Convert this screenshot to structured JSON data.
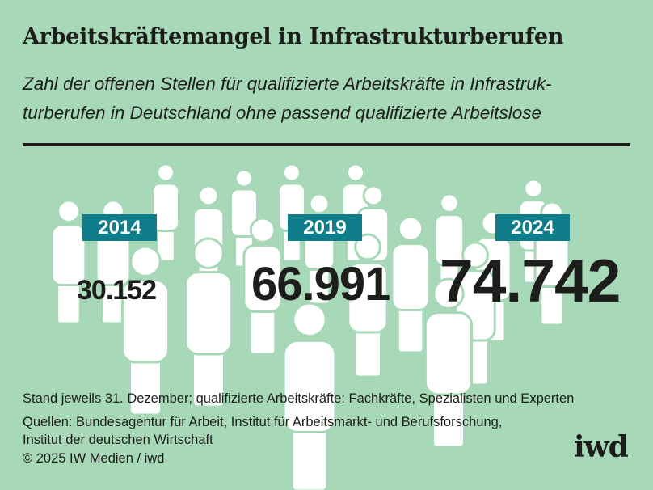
{
  "title": "Arbeitskräftemangel in Infrastrukturberufen",
  "subtitle_lines": [
    "Zahl der offenen Stellen für qualifizierte Arbeitskräfte in Infrastruk-",
    "turberufen in Deutschland ohne passend qualifizierte Arbeitslose"
  ],
  "colors": {
    "background": "#a7d8b8",
    "label": "#0f7e8a",
    "text": "#1d1d1b",
    "figures": "#ffffff"
  },
  "chart_data": {
    "type": "table",
    "title": "Arbeitskräftemangel in Infrastrukturberufen",
    "categories": [
      "2014",
      "2019",
      "2024"
    ],
    "values": [
      30152,
      66991,
      74742
    ],
    "labels": [
      "30.152",
      "66.991",
      "74.742"
    ]
  },
  "footer": {
    "note": "Stand jeweils 31. Dezember; qualifizierte Arbeitskräfte: Fachkräfte, Spezialisten und Experten",
    "sources_line1": "Quellen: Bundesagentur für Arbeit, Institut für Arbeitsmarkt- und Berufsforschung,",
    "sources_line2": "Institut der deutschen Wirtschaft",
    "copyright": "© 2025 IW Medien / iwd"
  },
  "logo": "iwd"
}
